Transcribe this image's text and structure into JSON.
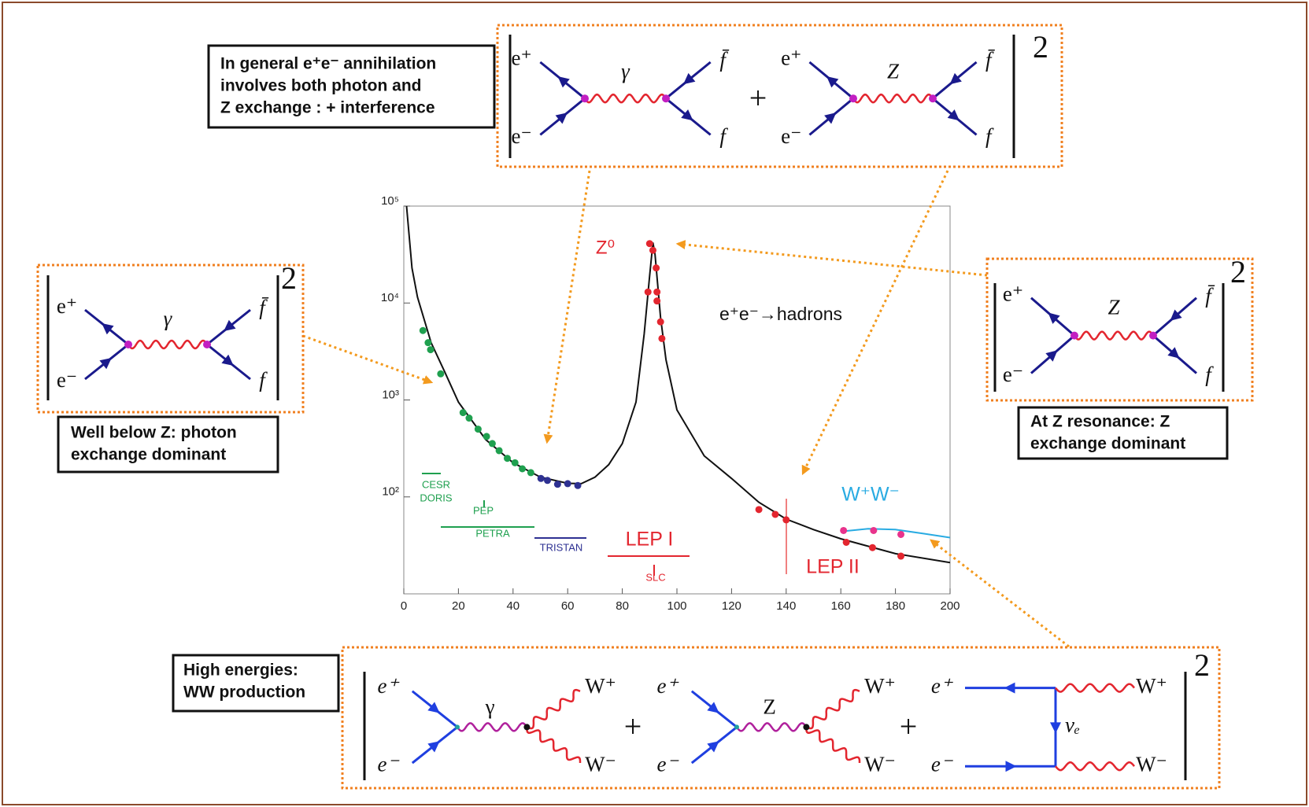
{
  "notes": [
    {
      "lines": [
        "In general e⁺e⁻ annihilation",
        "involves both photon and",
        "Z exchange  :  + interference"
      ]
    },
    {
      "lines": [
        "Well below Z: photon",
        "exchange dominant"
      ]
    },
    {
      "lines": [
        "At Z resonance: Z",
        "exchange dominant"
      ]
    },
    {
      "lines": [
        "High energies:",
        "WW production"
      ]
    }
  ],
  "panels": [
    {
      "terms": [
        {
          "kind": "s",
          "in_top": "e⁺",
          "in_bottom": "e⁻",
          "boson": "γ",
          "out_top": "f̄",
          "out_bottom": "f"
        },
        {
          "kind": "s",
          "in_top": "e⁺",
          "in_bottom": "e⁻",
          "boson": "Z",
          "out_top": "f̄",
          "out_bottom": "f"
        }
      ],
      "plus": "+",
      "power": "2"
    },
    {
      "terms": [
        {
          "kind": "s",
          "in_top": "e⁺",
          "in_bottom": "e⁻",
          "boson": "γ",
          "out_top": "f̄",
          "out_bottom": "f"
        }
      ],
      "power": "2"
    },
    {
      "terms": [
        {
          "kind": "s",
          "in_top": "e⁺",
          "in_bottom": "e⁻",
          "boson": "Z",
          "out_top": "f̄",
          "out_bottom": "f"
        }
      ],
      "power": "2"
    },
    {
      "terms": [
        {
          "kind": "sw",
          "in_top": "e⁺",
          "in_bottom": "e⁻",
          "boson": "γ",
          "out_top": "W⁺",
          "out_bottom": "W⁻"
        },
        {
          "kind": "sw",
          "in_top": "e⁺",
          "in_bottom": "e⁻",
          "boson": "Z",
          "out_top": "W⁺",
          "out_bottom": "W⁻"
        },
        {
          "kind": "t",
          "in_top": "e⁺",
          "in_bottom": "e⁻",
          "boson": "νₑ",
          "out_top": "W⁺",
          "out_bottom": "W⁻"
        }
      ],
      "plus": "+",
      "power": "2"
    }
  ],
  "chart_data": {
    "type": "line",
    "xlim": [
      0,
      200
    ],
    "xticks": [
      0,
      20,
      40,
      60,
      80,
      100,
      120,
      140,
      160,
      180,
      200
    ],
    "ylim": [
      10,
      100000
    ],
    "yscale": "log",
    "yticks": [
      {
        "value": 100,
        "label": "10²"
      },
      {
        "value": 1000,
        "label": "10³"
      },
      {
        "value": 10000,
        "label": "10⁴"
      },
      {
        "value": 100000,
        "label": "10⁵"
      }
    ],
    "annotations": [
      "Z⁰",
      "e⁺e⁻→hadrons",
      "W⁺W⁻",
      "CESR",
      "DORIS",
      "PEP",
      "PETRA",
      "TRISTAN",
      "LEP I",
      "SLC",
      "LEP II"
    ],
    "series": [
      {
        "mode": "line",
        "color": "#111111",
        "x": [
          1,
          3,
          5,
          10,
          15,
          20,
          30,
          40,
          50,
          60,
          65,
          70,
          75,
          80,
          85,
          88,
          90,
          91.2,
          92,
          94,
          96,
          100,
          110,
          120,
          130,
          140,
          150,
          160,
          180,
          200
        ],
        "values": [
          100000,
          23000,
          11500,
          3900,
          1950,
          950,
          390,
          225,
          160,
          138,
          137,
          160,
          215,
          355,
          950,
          4800,
          19000,
          42000,
          31600,
          7100,
          2600,
          790,
          265,
          155,
          88,
          59,
          46,
          37,
          26,
          21
        ]
      },
      {
        "mode": "line",
        "color": "#29abe2",
        "x": [
          160,
          170,
          180,
          190,
          200
        ],
        "values": [
          44,
          47,
          46,
          42,
          38
        ]
      },
      {
        "mode": "points",
        "color": "#1fa04f",
        "x": [
          7,
          8.9,
          9.8,
          13.5,
          21.7,
          23.9,
          27.2,
          30.3,
          32.4,
          34.9,
          37.9,
          40.7,
          43.4,
          46.5
        ],
        "values": [
          5200,
          3900,
          3300,
          1860,
          740,
          650,
          500,
          420,
          355,
          300,
          250,
          225,
          195,
          178
        ]
      },
      {
        "mode": "points",
        "color": "#2e3192",
        "x": [
          50.2,
          52.6,
          56.3,
          60,
          63.7
        ],
        "values": [
          155,
          148,
          135,
          137,
          131
        ]
      },
      {
        "mode": "points",
        "color": "#e3262f",
        "x": [
          90,
          91.2,
          89.4,
          92.7,
          92.4,
          92.7,
          94,
          94.5,
          130,
          136,
          140,
          162,
          171.6,
          182
        ],
        "values": [
          41000,
          35000,
          13000,
          13000,
          23000,
          10500,
          6400,
          4300,
          74,
          66,
          58,
          34,
          30,
          24.5
        ]
      },
      {
        "mode": "points",
        "color": "#e8338c",
        "x": [
          161,
          172,
          182
        ],
        "values": [
          45,
          45,
          41
        ]
      }
    ]
  }
}
